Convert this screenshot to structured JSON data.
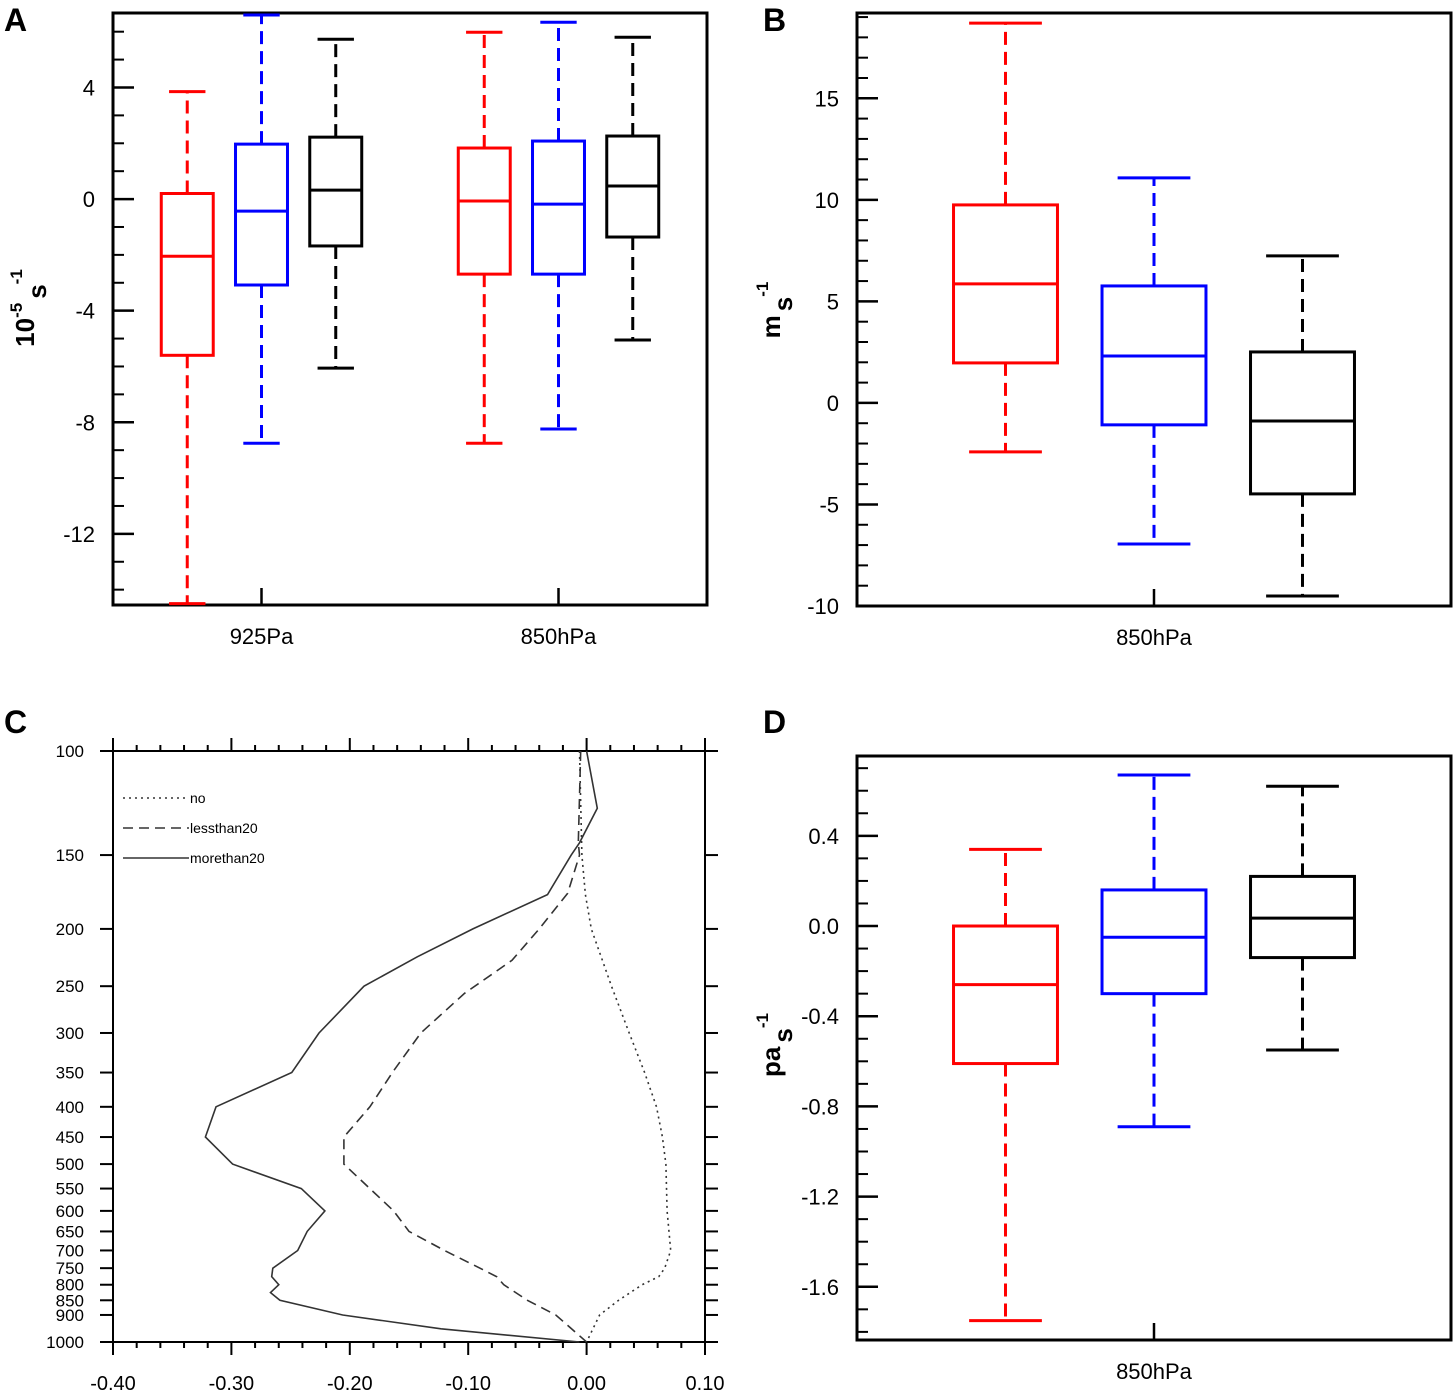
{
  "chart_data": [
    {
      "panel": "A",
      "type": "box",
      "ylabel": {
        "base": "10",
        "exp": "-5",
        "unit": "s",
        "unit_exp": "-1"
      },
      "ylim": [
        -14.55,
        6.67
      ],
      "yticks": [
        "4",
        "0",
        "-4",
        "-8",
        "-12"
      ],
      "ytick_values": [
        4,
        0,
        -4,
        -8,
        -12
      ],
      "minor_step": 1,
      "categories": [
        "925Pa",
        "850hPa"
      ],
      "series_colors": [
        "#ff0000",
        "#0000ff",
        "#000000"
      ],
      "boxes": [
        [
          {
            "whisker_low": -14.5,
            "q1": -5.6,
            "median": -2.05,
            "q3": 0.2,
            "whisker_high": 3.85
          },
          {
            "whisker_low": -8.75,
            "q1": -3.08,
            "median": -0.43,
            "q3": 1.97,
            "whisker_high": 6.6
          },
          {
            "whisker_low": -6.06,
            "q1": -1.68,
            "median": 0.32,
            "q3": 2.22,
            "whisker_high": 5.73
          }
        ],
        [
          {
            "whisker_low": -8.75,
            "q1": -2.69,
            "median": -0.07,
            "q3": 1.83,
            "whisker_high": 5.98
          },
          {
            "whisker_low": -8.24,
            "q1": -2.69,
            "median": -0.18,
            "q3": 2.08,
            "whisker_high": 6.34
          },
          {
            "whisker_low": -5.05,
            "q1": -1.36,
            "median": 0.47,
            "q3": 2.26,
            "whisker_high": 5.8
          }
        ]
      ]
    },
    {
      "panel": "B",
      "type": "box",
      "ylabel": {
        "base": "m",
        "exp": "",
        "unit": "s",
        "unit_exp": "-1"
      },
      "ylim": [
        -10,
        19.2
      ],
      "yticks": [
        "15",
        "10",
        "5",
        "0",
        "-5",
        "-10"
      ],
      "ytick_values": [
        15,
        10,
        5,
        0,
        -5,
        -10
      ],
      "minor_step": 1,
      "categories": [
        "850hPa"
      ],
      "series_colors": [
        "#ff0000",
        "#0000ff",
        "#000000"
      ],
      "boxes": [
        [
          {
            "whisker_low": -2.41,
            "q1": 1.97,
            "median": 5.86,
            "q3": 9.75,
            "whisker_high": 18.7
          },
          {
            "whisker_low": -6.95,
            "q1": -1.08,
            "median": 2.31,
            "q3": 5.76,
            "whisker_high": 11.08
          },
          {
            "whisker_low": -9.51,
            "q1": -4.48,
            "median": -0.89,
            "q3": 2.51,
            "whisker_high": 7.24
          }
        ]
      ]
    },
    {
      "panel": "C",
      "type": "line",
      "xlim": [
        -0.4,
        0.1
      ],
      "xticks": [
        "-0.40",
        "-0.30",
        "-0.20",
        "-0.10",
        "0.00",
        "0.10"
      ],
      "xtick_values": [
        -0.4,
        -0.3,
        -0.2,
        -0.1,
        0.0,
        0.1
      ],
      "x_minor_step": 0.02,
      "yscale": "log-pressure",
      "ylim": [
        100,
        1000
      ],
      "yticks": [
        "100",
        "150",
        "200",
        "250",
        "300",
        "350",
        "400",
        "450",
        "500",
        "550",
        "600",
        "650",
        "700",
        "750",
        "800",
        "850",
        "900",
        "1000"
      ],
      "ytick_values": [
        100,
        150,
        200,
        250,
        300,
        350,
        400,
        450,
        500,
        550,
        600,
        650,
        700,
        750,
        800,
        850,
        900,
        1000
      ],
      "legend_position": "top-left",
      "series": [
        {
          "name": "no",
          "style": "dotted",
          "p": [
            100,
            150,
            175,
            200,
            250,
            300,
            350,
            400,
            450,
            500,
            600,
            700,
            750,
            775,
            800,
            850,
            900,
            1000
          ],
          "x": [
            -0.006,
            -0.004,
            -0.001,
            0.004,
            0.021,
            0.036,
            0.049,
            0.059,
            0.064,
            0.067,
            0.068,
            0.071,
            0.066,
            0.061,
            0.047,
            0.027,
            0.011,
            0.0
          ]
        },
        {
          "name": "lessthan20",
          "style": "dashed",
          "p": [
            100,
            143,
            150,
            174,
            200,
            226,
            257,
            300,
            350,
            400,
            450,
            500,
            550,
            600,
            650,
            700,
            750,
            775,
            800,
            850,
            900,
            1000
          ],
          "x": [
            -0.005,
            -0.007,
            -0.006,
            -0.016,
            -0.04,
            -0.063,
            -0.103,
            -0.14,
            -0.164,
            -0.183,
            -0.205,
            -0.205,
            -0.183,
            -0.163,
            -0.15,
            -0.12,
            -0.09,
            -0.076,
            -0.07,
            -0.05,
            -0.026,
            0.0
          ]
        },
        {
          "name": "morethan20",
          "style": "solid",
          "p": [
            100,
            125,
            143,
            150,
            175,
            200,
            223,
            250,
            300,
            350,
            400,
            450,
            500,
            550,
            600,
            650,
            700,
            750,
            775,
            800,
            825,
            850,
            900,
            950,
            1000
          ],
          "x": [
            0.0,
            0.009,
            -0.006,
            -0.013,
            -0.033,
            -0.096,
            -0.143,
            -0.188,
            -0.226,
            -0.249,
            -0.313,
            -0.322,
            -0.299,
            -0.241,
            -0.221,
            -0.236,
            -0.244,
            -0.265,
            -0.266,
            -0.26,
            -0.267,
            -0.259,
            -0.206,
            -0.123,
            -0.006
          ]
        }
      ]
    },
    {
      "panel": "D",
      "type": "box",
      "ylabel": {
        "base": "pa",
        "exp": "",
        "unit": "s",
        "unit_exp": "-1"
      },
      "ylim": [
        -1.836,
        0.754
      ],
      "yticks": [
        "0.4",
        "0.0",
        "-0.4",
        "-0.8",
        "-1.2",
        "-1.6"
      ],
      "ytick_values": [
        0.4,
        0.0,
        -0.4,
        -0.8,
        -1.2,
        -1.6
      ],
      "minor_step": 0.1,
      "categories": [
        "850hPa"
      ],
      "series_colors": [
        "#ff0000",
        "#0000ff",
        "#000000"
      ],
      "boxes": [
        [
          {
            "whisker_low": -1.75,
            "q1": -0.61,
            "median": -0.26,
            "q3": 0.0,
            "whisker_high": 0.34
          },
          {
            "whisker_low": -0.89,
            "q1": -0.3,
            "median": -0.05,
            "q3": 0.16,
            "whisker_high": 0.67
          },
          {
            "whisker_low": -0.55,
            "q1": -0.14,
            "median": 0.035,
            "q3": 0.22,
            "whisker_high": 0.62
          }
        ]
      ]
    }
  ]
}
